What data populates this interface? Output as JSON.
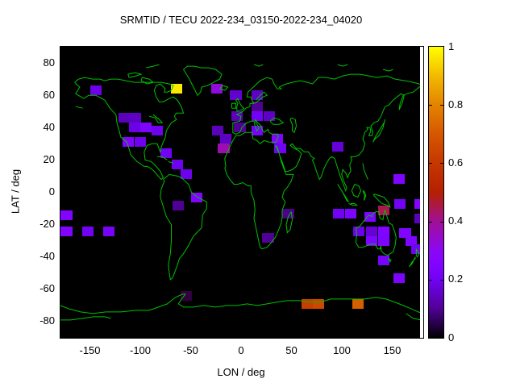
{
  "title": "SRMTID / TECU 2022-234_03150-2022-234_04020",
  "chart_data": {
    "type": "heatmap",
    "title": "SRMTID / TECU 2022-234_03150-2022-234_04020",
    "xlabel": "LON / deg",
    "ylabel": "LAT / deg",
    "xlim": [
      -180,
      180
    ],
    "ylim": [
      -90,
      90
    ],
    "xticks": [
      -150,
      -100,
      -50,
      0,
      50,
      100,
      150
    ],
    "yticks": [
      80,
      60,
      40,
      20,
      0,
      -20,
      -40,
      -60,
      -80
    ],
    "grid": false,
    "basemap": "world-coastlines",
    "cell_size_deg": {
      "lon": 11.25,
      "lat": 6
    },
    "colors": {
      "page_bg": "#ffffff",
      "plot_bg": "#000000",
      "coastline": "#00c000",
      "text": "#000000",
      "palette": [
        "#000000",
        "#8004ff",
        "#a11096",
        "#b42000",
        "#e48300",
        "#ffff00"
      ]
    },
    "colorbar": {
      "min": 0,
      "max": 1,
      "tick_labels": [
        "1",
        "0.8",
        "0.6",
        "0.4",
        "0.2",
        "0"
      ],
      "tick_values": [
        1,
        0.8,
        0.6,
        0.4,
        0.2,
        0
      ],
      "position": "right"
    },
    "cells_lon_lat_value": [
      [
        -145,
        63,
        0.18
      ],
      [
        -65,
        64,
        0.97
      ],
      [
        -25,
        64,
        0.33
      ],
      [
        -6,
        60,
        0.15
      ],
      [
        15,
        60,
        0.14
      ],
      [
        15,
        53,
        0.1
      ],
      [
        -5,
        47,
        0.13
      ],
      [
        15,
        47,
        0.2
      ],
      [
        27,
        47,
        0.14
      ],
      [
        -2,
        40,
        0.1
      ],
      [
        15,
        38,
        0.22
      ],
      [
        -24,
        38,
        0.13
      ],
      [
        -16,
        33,
        0.14
      ],
      [
        -18,
        27,
        0.38
      ],
      [
        35,
        33,
        0.25
      ],
      [
        38,
        27,
        0.2
      ],
      [
        -117,
        46,
        0.13
      ],
      [
        -106,
        46,
        0.14
      ],
      [
        -106,
        40,
        0.18
      ],
      [
        -95,
        40,
        0.24
      ],
      [
        -84,
        38,
        0.19
      ],
      [
        -113,
        31,
        0.26
      ],
      [
        -101,
        31,
        0.19
      ],
      [
        -75,
        24,
        0.2
      ],
      [
        -64,
        17,
        0.19
      ],
      [
        -55,
        11,
        0.19
      ],
      [
        -45,
        -3,
        0.26
      ],
      [
        -63,
        -8,
        0.1
      ],
      [
        -174,
        -14,
        0.26
      ],
      [
        -174,
        -24,
        0.26
      ],
      [
        -153,
        -24,
        0.2
      ],
      [
        -132,
        -24,
        0.22
      ],
      [
        46,
        -13,
        0.09
      ],
      [
        26,
        -28,
        0.1
      ],
      [
        95,
        28,
        0.16
      ],
      [
        156,
        8,
        0.25
      ],
      [
        96,
        -13,
        0.2
      ],
      [
        108,
        -13,
        0.24
      ],
      [
        127,
        -15,
        0.24
      ],
      [
        141,
        -11,
        0.45
      ],
      [
        157,
        -7,
        0.2
      ],
      [
        177,
        -7,
        0.26
      ],
      [
        177,
        -16,
        0.13
      ],
      [
        116,
        -24,
        0.18
      ],
      [
        129,
        -24,
        0.16
      ],
      [
        141,
        -24,
        0.25
      ],
      [
        129,
        -30,
        0.24
      ],
      [
        141,
        -30,
        0.24
      ],
      [
        162,
        -25,
        0.25
      ],
      [
        168,
        -30,
        0.24
      ],
      [
        174,
        -35,
        0.2
      ],
      [
        141,
        -42,
        0.22
      ],
      [
        156,
        -53,
        0.24
      ],
      [
        -55,
        -64,
        0.04
      ],
      [
        65,
        -69,
        0.62
      ],
      [
        76,
        -69,
        0.65
      ],
      [
        115,
        -69,
        0.72
      ]
    ]
  }
}
